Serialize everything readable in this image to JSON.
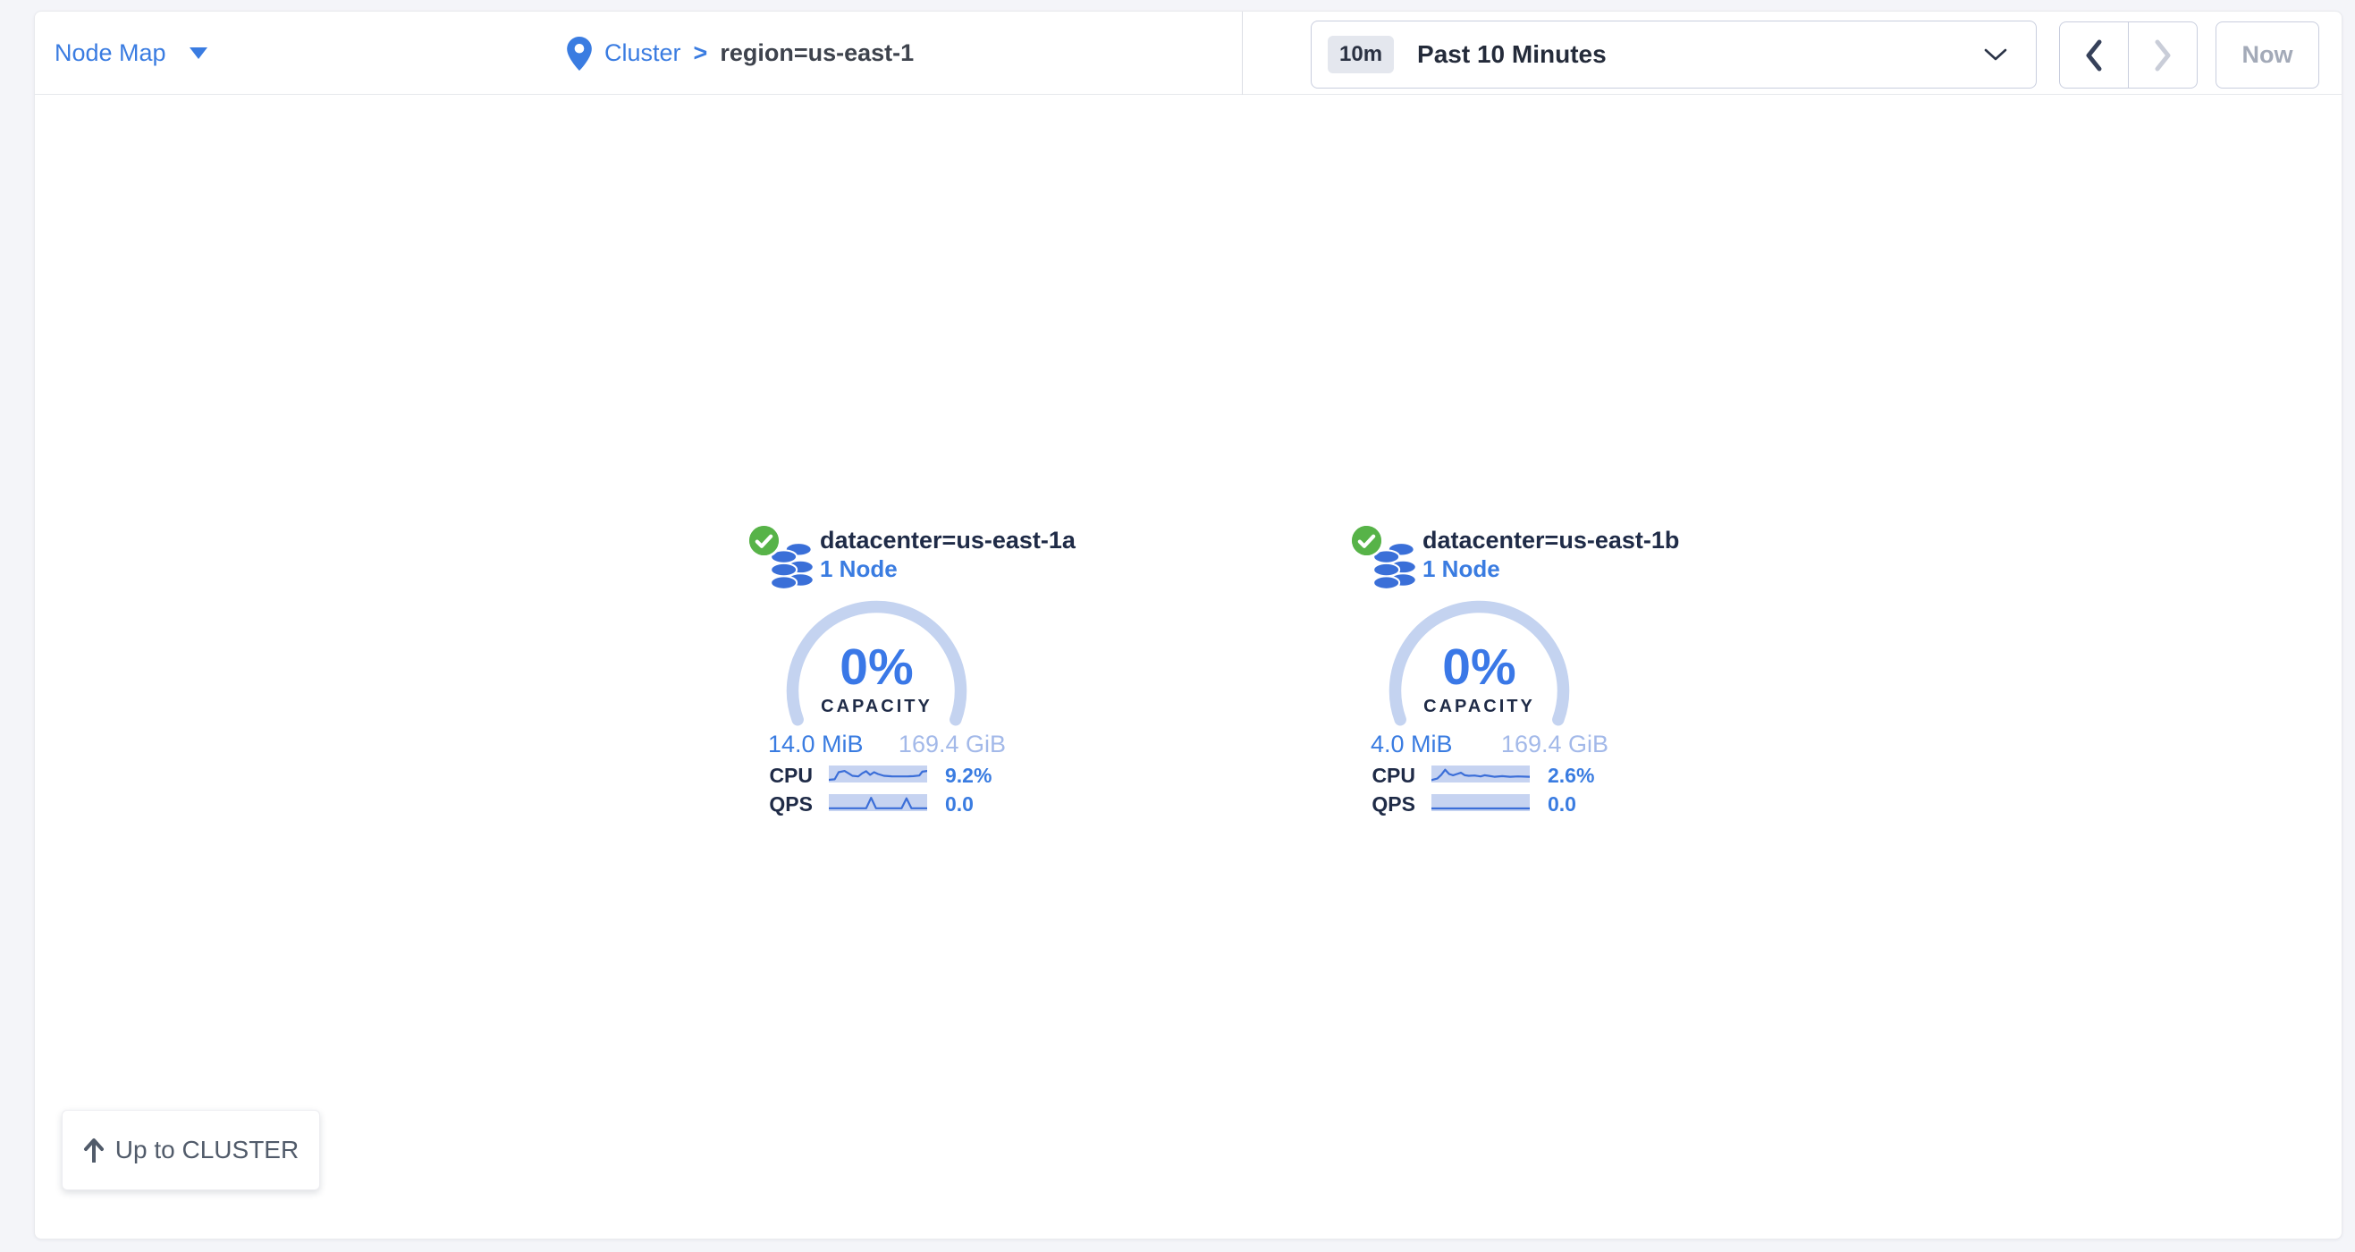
{
  "header": {
    "view_selector": {
      "label": "Node Map"
    },
    "breadcrumb": {
      "cluster_label": "Cluster",
      "separator": ">",
      "current": "region=us-east-1"
    },
    "time_picker": {
      "badge": "10m",
      "label": "Past 10 Minutes"
    },
    "time_nav": {
      "now_label": "Now"
    }
  },
  "map": {
    "localities": [
      {
        "status": "healthy",
        "title": "datacenter=us-east-1a",
        "subtitle": "1 Node",
        "capacity": {
          "percent": "0%",
          "label": "CAPACITY",
          "used": "14.0 MiB",
          "total": "169.4 GiB"
        },
        "metrics": [
          {
            "label": "CPU",
            "value": "9.2%",
            "spark": [
              [
                0,
                0.88
              ],
              [
                0.06,
                0.85
              ],
              [
                0.1,
                0.38
              ],
              [
                0.16,
                0.3
              ],
              [
                0.2,
                0.45
              ],
              [
                0.24,
                0.62
              ],
              [
                0.3,
                0.66
              ],
              [
                0.34,
                0.45
              ],
              [
                0.38,
                0.32
              ],
              [
                0.42,
                0.55
              ],
              [
                0.46,
                0.38
              ],
              [
                0.5,
                0.5
              ],
              [
                0.56,
                0.62
              ],
              [
                0.64,
                0.65
              ],
              [
                0.72,
                0.66
              ],
              [
                0.8,
                0.66
              ],
              [
                0.86,
                0.64
              ],
              [
                0.92,
                0.6
              ],
              [
                0.95,
                0.35
              ],
              [
                1,
                0.3
              ]
            ]
          },
          {
            "label": "QPS",
            "value": "0.0",
            "spark": [
              [
                0,
                0.87
              ],
              [
                0.38,
                0.87
              ],
              [
                0.43,
                0.18
              ],
              [
                0.48,
                0.87
              ],
              [
                0.74,
                0.87
              ],
              [
                0.79,
                0.22
              ],
              [
                0.84,
                0.87
              ],
              [
                1,
                0.87
              ]
            ]
          }
        ]
      },
      {
        "status": "healthy",
        "title": "datacenter=us-east-1b",
        "subtitle": "1 Node",
        "capacity": {
          "percent": "0%",
          "label": "CAPACITY",
          "used": "4.0 MiB",
          "total": "169.4 GiB"
        },
        "metrics": [
          {
            "label": "CPU",
            "value": "2.6%",
            "spark": [
              [
                0,
                0.9
              ],
              [
                0.06,
                0.8
              ],
              [
                0.1,
                0.55
              ],
              [
                0.14,
                0.22
              ],
              [
                0.18,
                0.5
              ],
              [
                0.22,
                0.58
              ],
              [
                0.26,
                0.5
              ],
              [
                0.3,
                0.42
              ],
              [
                0.34,
                0.58
              ],
              [
                0.38,
                0.62
              ],
              [
                0.44,
                0.6
              ],
              [
                0.5,
                0.66
              ],
              [
                0.54,
                0.58
              ],
              [
                0.58,
                0.62
              ],
              [
                0.64,
                0.68
              ],
              [
                0.72,
                0.64
              ],
              [
                0.8,
                0.68
              ],
              [
                0.88,
                0.66
              ],
              [
                1,
                0.68
              ]
            ]
          },
          {
            "label": "QPS",
            "value": "0.0",
            "spark": [
              [
                0,
                0.88
              ],
              [
                1,
                0.88
              ]
            ]
          }
        ]
      }
    ],
    "up_button": {
      "label": "Up to CLUSTER"
    }
  },
  "colors": {
    "accent_blue": "#3a7ce1",
    "navy": "#1f2b47",
    "light_blue": "#a3b9e9",
    "gauge_arc": "#c4d3f0",
    "spark_bg": "#c6d3f1",
    "spark_line": "#3b6ed8",
    "healthy_green": "#57b348",
    "page_bg": "#f4f5f9"
  }
}
